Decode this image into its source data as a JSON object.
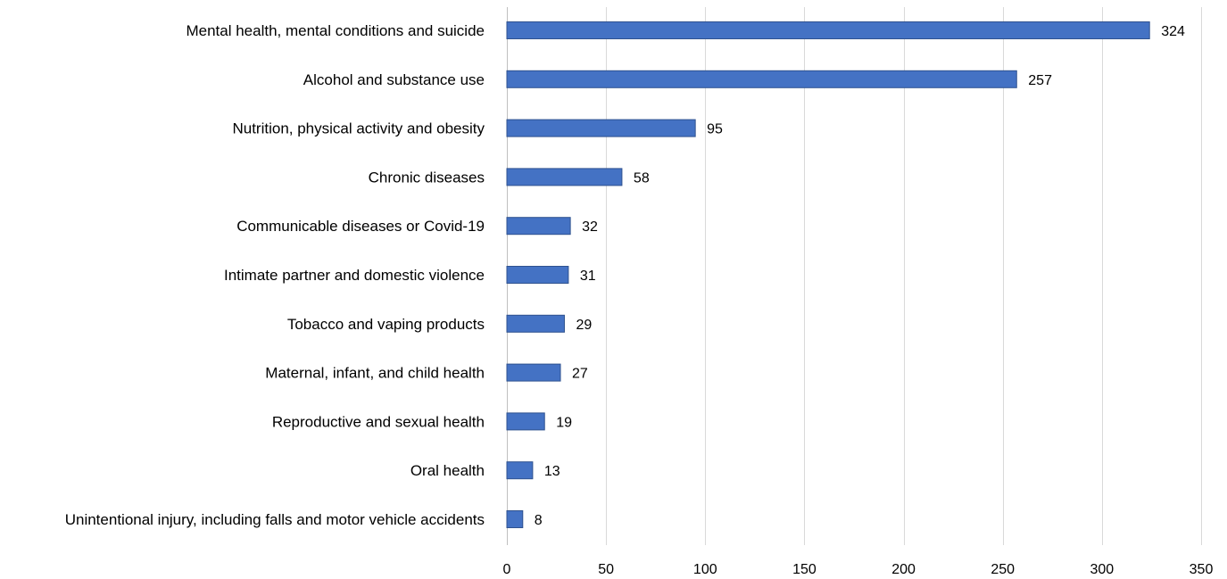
{
  "chart_data": {
    "type": "bar",
    "orientation": "horizontal",
    "categories": [
      "Mental health, mental conditions and suicide",
      "Alcohol and substance use",
      "Nutrition, physical activity and obesity",
      "Chronic diseases",
      "Communicable diseases or Covid-19",
      "Intimate partner and domestic violence",
      "Tobacco and vaping products",
      "Maternal, infant, and child health",
      "Reproductive and sexual health",
      "Oral health",
      "Unintentional injury, including falls and motor vehicle accidents"
    ],
    "values": [
      324,
      257,
      95,
      58,
      32,
      31,
      29,
      27,
      19,
      13,
      8
    ],
    "data_labels": [
      "324",
      "257",
      "95",
      "58",
      "32",
      "31",
      "29",
      "27",
      "19",
      "13",
      "8"
    ],
    "x_ticks": [
      "0",
      "50",
      "100",
      "150",
      "200",
      "250",
      "300",
      "350"
    ],
    "xlim": [
      0,
      350
    ],
    "title": "",
    "xlabel": "",
    "ylabel": "",
    "grid": "vertical",
    "legend": "none",
    "colors": {
      "bar_fill": "#4472c4",
      "bar_edge": "#2f528f",
      "grid": "#d9d9d9"
    }
  }
}
